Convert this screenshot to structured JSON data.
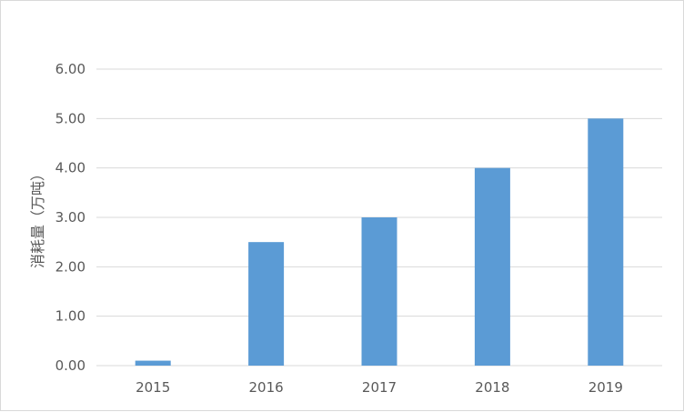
{
  "chart_data": {
    "type": "bar",
    "title": "",
    "xlabel": "",
    "ylabel": "消耗量（万吨）",
    "categories": [
      "2015",
      "2016",
      "2017",
      "2018",
      "2019"
    ],
    "values": [
      0.1,
      2.5,
      3.0,
      4.0,
      5.0
    ],
    "ylim": [
      0,
      6
    ],
    "yticks": [
      "0.00",
      "1.00",
      "2.00",
      "3.00",
      "4.00",
      "5.00",
      "6.00"
    ],
    "grid": true,
    "legend": "none",
    "colors": {
      "bar": "#5b9bd5",
      "grid": "#d9d9d9",
      "text": "#595959"
    }
  }
}
